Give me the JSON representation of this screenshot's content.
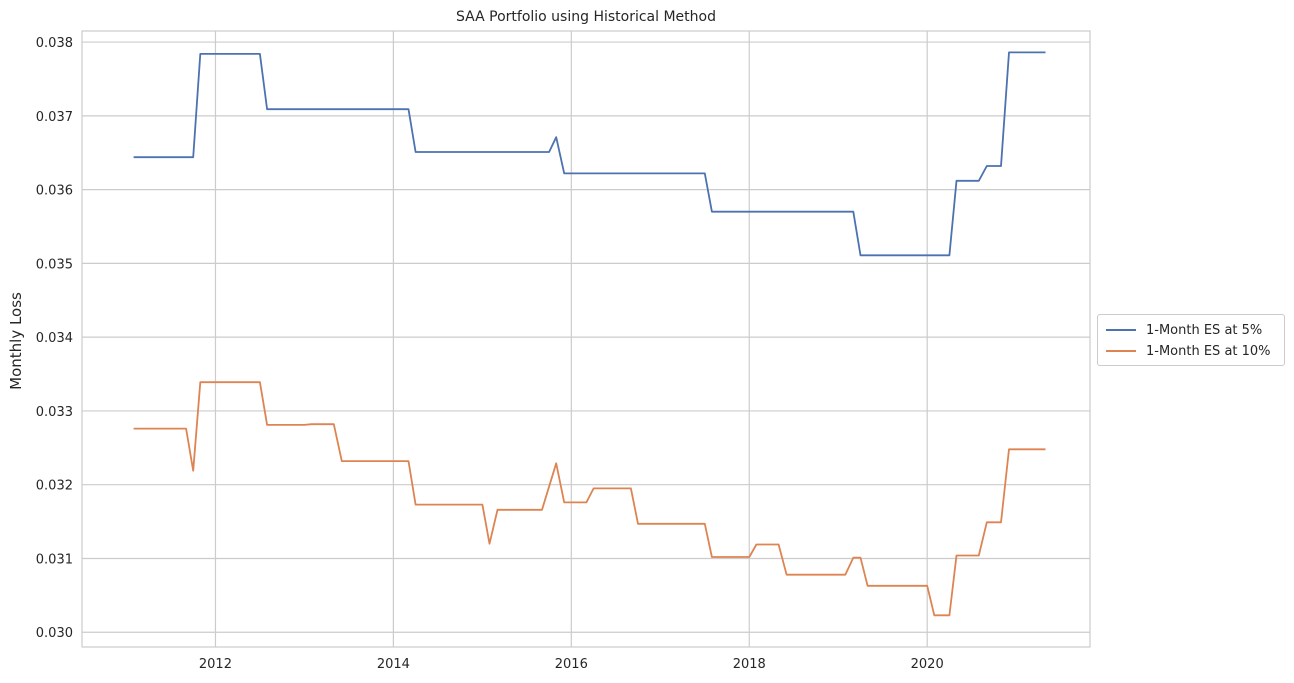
{
  "chart_data": {
    "type": "line",
    "title": "SAA Portfolio using Historical Method",
    "xlabel": "",
    "ylabel": "Monthly Loss",
    "xlim": [
      2010.5,
      2021.83
    ],
    "ylim": [
      0.0298,
      0.03815
    ],
    "xticks": [
      2012,
      2014,
      2016,
      2018,
      2020
    ],
    "yticks": [
      0.03,
      0.031,
      0.032,
      0.033,
      0.034,
      0.035,
      0.036,
      0.037,
      0.038
    ],
    "ytick_labels": [
      "0.030",
      "0.031",
      "0.032",
      "0.033",
      "0.034",
      "0.035",
      "0.036",
      "0.037",
      "0.038"
    ],
    "grid": true,
    "legend_position": "center-right outside",
    "series": [
      {
        "name": "1-Month ES at 5%",
        "color": "#4c72b0",
        "points": [
          [
            2011.08,
            0.03644
          ],
          [
            2011.75,
            0.03644
          ],
          [
            2011.83,
            0.03784
          ],
          [
            2012.5,
            0.03784
          ],
          [
            2012.58,
            0.03709
          ],
          [
            2014.17,
            0.03709
          ],
          [
            2014.25,
            0.03651
          ],
          [
            2015.75,
            0.03651
          ],
          [
            2015.83,
            0.03671
          ],
          [
            2015.92,
            0.03622
          ],
          [
            2017.5,
            0.03622
          ],
          [
            2017.58,
            0.0357
          ],
          [
            2019.17,
            0.0357
          ],
          [
            2019.25,
            0.03511
          ],
          [
            2020.25,
            0.03511
          ],
          [
            2020.33,
            0.03612
          ],
          [
            2020.58,
            0.03612
          ],
          [
            2020.67,
            0.03632
          ],
          [
            2020.83,
            0.03632
          ],
          [
            2020.92,
            0.03786
          ],
          [
            2021.33,
            0.03786
          ]
        ]
      },
      {
        "name": "1-Month ES at 10%",
        "color": "#dd8452",
        "points": [
          [
            2011.08,
            0.03276
          ],
          [
            2011.67,
            0.03276
          ],
          [
            2011.75,
            0.03219
          ],
          [
            2011.83,
            0.03339
          ],
          [
            2012.5,
            0.03339
          ],
          [
            2012.58,
            0.03281
          ],
          [
            2013.0,
            0.03281
          ],
          [
            2013.08,
            0.03282
          ],
          [
            2013.33,
            0.03282
          ],
          [
            2013.42,
            0.03232
          ],
          [
            2014.17,
            0.03232
          ],
          [
            2014.25,
            0.03173
          ],
          [
            2015.0,
            0.03173
          ],
          [
            2015.08,
            0.0312
          ],
          [
            2015.17,
            0.03166
          ],
          [
            2015.67,
            0.03166
          ],
          [
            2015.83,
            0.03229
          ],
          [
            2015.92,
            0.03176
          ],
          [
            2016.17,
            0.03176
          ],
          [
            2016.25,
            0.03195
          ],
          [
            2016.67,
            0.03195
          ],
          [
            2016.75,
            0.03147
          ],
          [
            2017.5,
            0.03147
          ],
          [
            2017.58,
            0.03102
          ],
          [
            2018.0,
            0.03102
          ],
          [
            2018.08,
            0.03119
          ],
          [
            2018.33,
            0.03119
          ],
          [
            2018.42,
            0.03078
          ],
          [
            2019.08,
            0.03078
          ],
          [
            2019.17,
            0.03101
          ],
          [
            2019.25,
            0.03101
          ],
          [
            2019.33,
            0.03063
          ],
          [
            2020.0,
            0.03063
          ],
          [
            2020.08,
            0.03023
          ],
          [
            2020.25,
            0.03023
          ],
          [
            2020.33,
            0.03104
          ],
          [
            2020.58,
            0.03104
          ],
          [
            2020.67,
            0.03149
          ],
          [
            2020.83,
            0.03149
          ],
          [
            2020.92,
            0.03248
          ],
          [
            2021.33,
            0.03248
          ]
        ]
      }
    ]
  }
}
